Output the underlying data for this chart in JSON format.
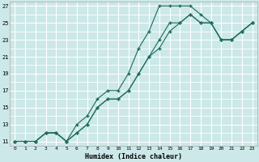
{
  "title": "",
  "xlabel": "Humidex (Indice chaleur)",
  "ylabel": "",
  "bg_color": "#cce8e8",
  "grid_color": "#ffffff",
  "line_color": "#1a6b5a",
  "xlim": [
    -0.5,
    23.5
  ],
  "ylim": [
    10.5,
    27.5
  ],
  "xticks": [
    0,
    1,
    2,
    3,
    4,
    5,
    6,
    7,
    8,
    9,
    10,
    11,
    12,
    13,
    14,
    15,
    16,
    17,
    18,
    19,
    20,
    21,
    22,
    23
  ],
  "yticks": [
    11,
    13,
    15,
    17,
    19,
    21,
    23,
    25,
    27
  ],
  "line1_x": [
    0,
    1,
    2,
    3,
    4,
    5,
    6,
    7,
    8,
    9,
    10,
    11,
    12,
    13,
    14,
    15,
    16,
    17,
    18,
    19,
    20,
    21,
    22,
    23
  ],
  "line1_y": [
    11,
    11,
    11,
    12,
    12,
    11,
    13,
    14,
    16,
    17,
    17,
    19,
    22,
    24,
    27,
    27,
    27,
    27,
    26,
    25,
    23,
    23,
    24,
    25
  ],
  "line2_x": [
    0,
    1,
    2,
    3,
    4,
    5,
    6,
    7,
    8,
    9,
    10,
    11,
    12,
    13,
    14,
    15,
    16,
    17,
    18,
    19,
    20,
    21,
    22,
    23
  ],
  "line2_y": [
    11,
    11,
    11,
    12,
    12,
    11,
    12,
    13,
    15,
    16,
    16,
    17,
    19,
    21,
    23,
    25,
    25,
    26,
    25,
    25,
    23,
    23,
    24,
    25
  ],
  "line3_x": [
    0,
    1,
    2,
    3,
    4,
    5,
    6,
    7,
    8,
    9,
    10,
    11,
    12,
    13,
    14,
    15,
    16,
    17,
    18,
    19,
    20,
    21,
    22,
    23
  ],
  "line3_y": [
    11,
    11,
    11,
    12,
    12,
    11,
    12,
    13,
    15,
    16,
    16,
    17,
    19,
    21,
    22,
    24,
    25,
    26,
    25,
    25,
    23,
    23,
    24,
    25
  ]
}
